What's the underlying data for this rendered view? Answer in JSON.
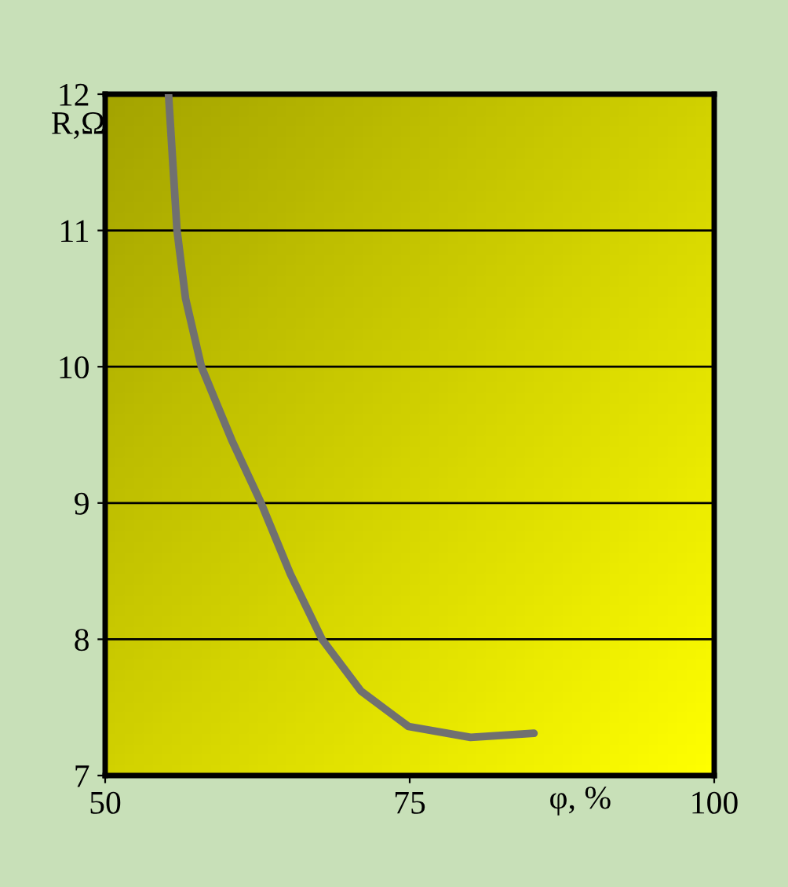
{
  "chart_data": {
    "type": "line",
    "xlabel": "φ, %",
    "ylabel": "R,Ω",
    "x": [
      55.2,
      55.9,
      56.6,
      57.9,
      60.4,
      62.8,
      65.2,
      67.8,
      71.0,
      74.9,
      80.0,
      85.2
    ],
    "series": [
      {
        "color": "#707070",
        "values": [
          12,
          11,
          10.5,
          10,
          9.46,
          9,
          8.48,
          8,
          7.62,
          7.36,
          7.28,
          7.31
        ]
      }
    ],
    "xlim": [
      50,
      100
    ],
    "xticks": [
      50,
      75,
      100
    ],
    "ylim": [
      7,
      12
    ],
    "yticks": [
      7,
      8,
      9,
      10,
      11,
      12
    ],
    "grid": "y",
    "marker": "none",
    "line_style": "solid",
    "legend": false
  }
}
